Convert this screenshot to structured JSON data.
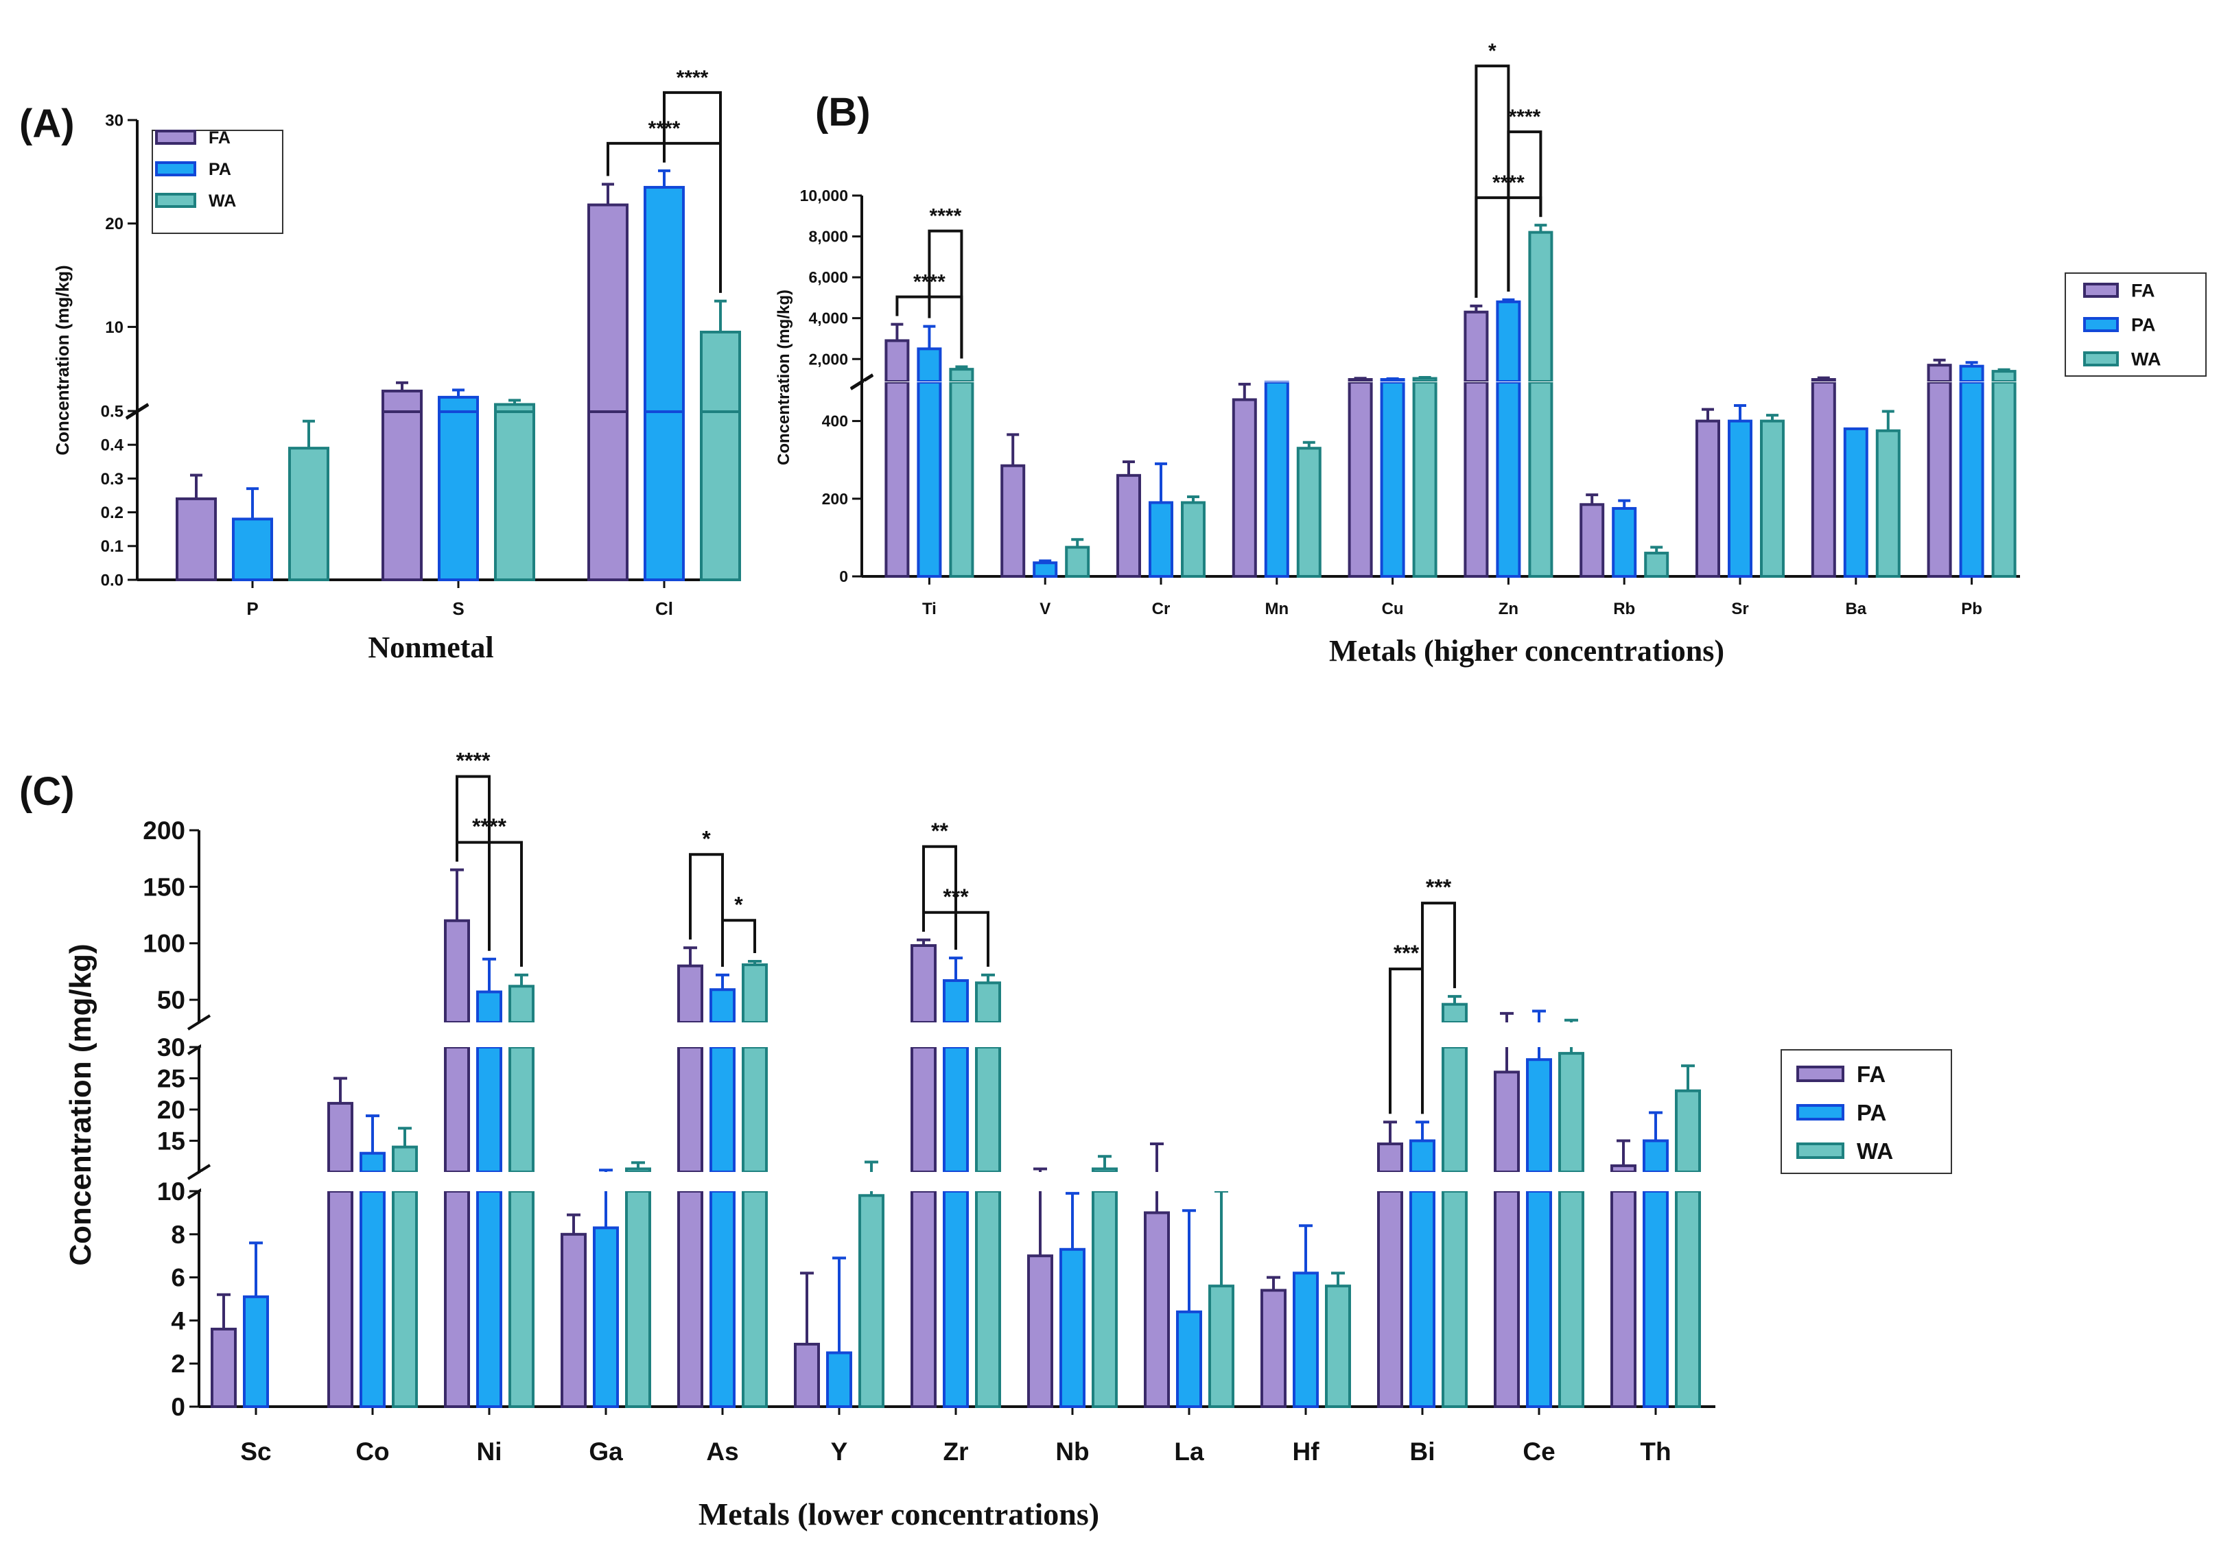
{
  "colors": {
    "FA": "#a48fd3",
    "PA": "#1ea7f3",
    "WA": "#6cc4c1",
    "FA_edge": "#3a2a6a",
    "PA_edge": "#1248d8",
    "WA_edge": "#1e8180"
  },
  "legend_entries": [
    "FA",
    "PA",
    "WA"
  ],
  "chart_data": [
    {
      "id": "A",
      "panel_label": "(A)",
      "type": "bar",
      "xlabel": "Nonmetal",
      "ylabel": "Concentration (mg/kg)",
      "categories": [
        "P",
        "S",
        "Cl"
      ],
      "series": [
        {
          "name": "FA",
          "values": [
            0.24,
            3.8,
            21.8
          ],
          "errors": [
            0.07,
            0.8,
            2.0
          ]
        },
        {
          "name": "PA",
          "values": [
            0.18,
            3.2,
            23.5
          ],
          "errors": [
            0.09,
            0.7,
            1.6
          ]
        },
        {
          "name": "WA",
          "values": [
            0.39,
            2.5,
            9.5
          ],
          "errors": [
            0.08,
            0.4,
            3.0
          ]
        }
      ],
      "axis_segments": [
        {
          "range": [
            0,
            0.5
          ],
          "ticks": [
            0.0,
            0.1,
            0.2,
            0.3,
            0.4,
            0.5
          ],
          "tick_labels": [
            "0.0",
            "0.1",
            "0.2",
            "0.3",
            "0.4",
            "0.5"
          ]
        },
        {
          "range": [
            1.8,
            30
          ],
          "ticks": [
            10,
            20,
            30
          ],
          "tick_labels": [
            "10",
            "20",
            "30"
          ]
        }
      ],
      "significance": [
        {
          "category": "Cl",
          "from": "FA",
          "to": "WA",
          "label": "****"
        },
        {
          "category": "Cl",
          "from": "PA",
          "to": "WA",
          "label": "****"
        }
      ]
    },
    {
      "id": "B",
      "panel_label": "(B)",
      "type": "bar",
      "xlabel": "Metals (higher concentrations)",
      "ylabel": "Concentration (mg/kg)",
      "categories": [
        "Ti",
        "V",
        "Cr",
        "Mn",
        "Cu",
        "Zn",
        "Rb",
        "Sr",
        "Ba",
        "Pb"
      ],
      "series": [
        {
          "name": "FA",
          "values": [
            2900,
            285,
            260,
            455,
            1000,
            4300,
            185,
            400,
            1000,
            1700
          ],
          "errors": [
            800,
            80,
            35,
            40,
            60,
            300,
            25,
            30,
            80,
            250
          ]
        },
        {
          "name": "PA",
          "values": [
            2500,
            35,
            190,
            500,
            1000,
            4800,
            175,
            400,
            380,
            1650
          ],
          "errors": [
            1100,
            5,
            100,
            0,
            40,
            100,
            20,
            40,
            0,
            180
          ]
        },
        {
          "name": "WA",
          "values": [
            1500,
            75,
            190,
            330,
            1050,
            8200,
            60,
            400,
            375,
            1400
          ],
          "errors": [
            120,
            20,
            15,
            15,
            50,
            350,
            15,
            15,
            50,
            80
          ]
        }
      ],
      "axis_segments": [
        {
          "range": [
            0,
            500
          ],
          "ticks": [
            0,
            200,
            400
          ],
          "tick_labels": [
            "0",
            "200",
            "400"
          ]
        },
        {
          "range": [
            900,
            10000
          ],
          "ticks": [
            2000,
            4000,
            6000,
            8000,
            10000
          ],
          "tick_labels": [
            "2,000",
            "4,000",
            "6,000",
            "8,000",
            "10,000"
          ]
        }
      ],
      "significance": [
        {
          "category": "Ti",
          "from": "FA",
          "to": "WA",
          "label": "****"
        },
        {
          "category": "Ti",
          "from": "PA",
          "to": "WA",
          "label": "****"
        },
        {
          "category": "Zn",
          "from": "FA",
          "to": "WA",
          "label": "****"
        },
        {
          "category": "Zn",
          "from": "PA",
          "to": "WA",
          "label": "****"
        },
        {
          "category": "Zn",
          "from": "FA",
          "to": "PA",
          "label": "*"
        }
      ]
    },
    {
      "id": "C",
      "panel_label": "(C)",
      "type": "bar",
      "xlabel": "Metals (lower concentrations)",
      "ylabel": "Concentration (mg/kg)",
      "categories": [
        "Sc",
        "Co",
        "Ni",
        "Ga",
        "As",
        "Y",
        "Zr",
        "Nb",
        "La",
        "Hf",
        "Bi",
        "Ce",
        "Th"
      ],
      "series": [
        {
          "name": "FA",
          "values": [
            3.6,
            21,
            120,
            8.0,
            80,
            2.9,
            98,
            7.0,
            9.0,
            5.4,
            14.5,
            26,
            11
          ],
          "errors": [
            1.6,
            4,
            45,
            0.9,
            16,
            3.3,
            5,
            3.5,
            5.5,
            0.6,
            3.5,
            12,
            4
          ]
        },
        {
          "name": "PA",
          "values": [
            5.1,
            13,
            57,
            8.3,
            59,
            2.5,
            67,
            7.3,
            4.4,
            6.2,
            15,
            28,
            15
          ],
          "errors": [
            2.5,
            6,
            29,
            2,
            13,
            4.4,
            20,
            2.6,
            4.7,
            2.2,
            3,
            12,
            4.5
          ]
        },
        {
          "name": "WA",
          "values": [
            0,
            14,
            62,
            10.5,
            81,
            9.8,
            65,
            10.5,
            5.6,
            5.6,
            46,
            29,
            23
          ],
          "errors": [
            0,
            3,
            10,
            1,
            3,
            1.8,
            7,
            2,
            4.4,
            0.6,
            7,
            3,
            4
          ]
        }
      ],
      "axis_segments": [
        {
          "range": [
            0,
            10
          ],
          "ticks": [
            0,
            2,
            4,
            6,
            8,
            10
          ],
          "tick_labels": [
            "0",
            "2",
            "4",
            "6",
            "8",
            "10"
          ]
        },
        {
          "range": [
            10,
            30
          ],
          "ticks": [
            10,
            15,
            20,
            25,
            30
          ],
          "tick_labels": [
            "10",
            "15",
            "20",
            "25",
            "30"
          ]
        },
        {
          "range": [
            30,
            200
          ],
          "ticks": [
            50,
            100,
            150,
            200
          ],
          "tick_labels": [
            "50",
            "100",
            "150",
            "200"
          ]
        }
      ],
      "significance": [
        {
          "category": "Ni",
          "from": "FA",
          "to": "WA",
          "label": "****"
        },
        {
          "category": "Ni",
          "from": "FA",
          "to": "PA",
          "label": "****"
        },
        {
          "category": "As",
          "from": "PA",
          "to": "WA",
          "label": "*"
        },
        {
          "category": "As",
          "from": "FA",
          "to": "PA",
          "label": "*"
        },
        {
          "category": "Zr",
          "from": "FA",
          "to": "WA",
          "label": "***"
        },
        {
          "category": "Zr",
          "from": "FA",
          "to": "PA",
          "label": "**"
        },
        {
          "category": "Bi",
          "from": "FA",
          "to": "PA",
          "label": "***"
        },
        {
          "category": "Bi",
          "from": "PA",
          "to": "WA",
          "label": "***"
        }
      ]
    }
  ]
}
